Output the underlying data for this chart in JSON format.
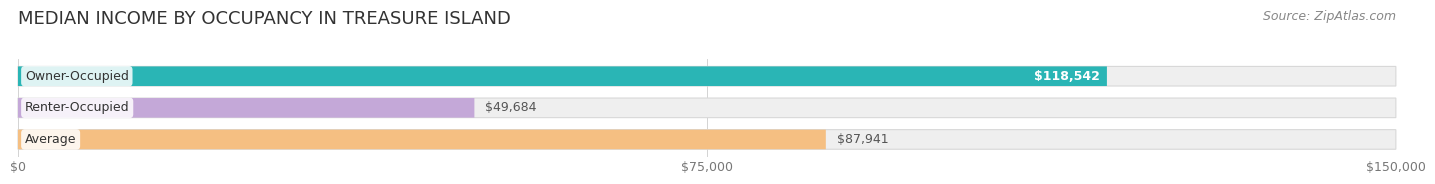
{
  "title": "MEDIAN INCOME BY OCCUPANCY IN TREASURE ISLAND",
  "source": "Source: ZipAtlas.com",
  "categories": [
    "Owner-Occupied",
    "Renter-Occupied",
    "Average"
  ],
  "values": [
    118542,
    49684,
    87941
  ],
  "labels": [
    "$118,542",
    "$49,684",
    "$87,941"
  ],
  "bar_colors": [
    "#2ab5b5",
    "#c4a8d8",
    "#f5bf82"
  ],
  "bar_bg_color": "#efefef",
  "x_ticks": [
    0,
    75000,
    150000
  ],
  "x_tick_labels": [
    "$0",
    "$75,000",
    "$150,000"
  ],
  "xlim_max": 150000,
  "title_fontsize": 13,
  "source_fontsize": 9,
  "label_fontsize": 9,
  "category_fontsize": 9,
  "bar_height": 0.62,
  "background_color": "#ffffff",
  "label_inside_color": "#ffffff",
  "label_outside_color": "#555555",
  "inside_threshold": 110000
}
